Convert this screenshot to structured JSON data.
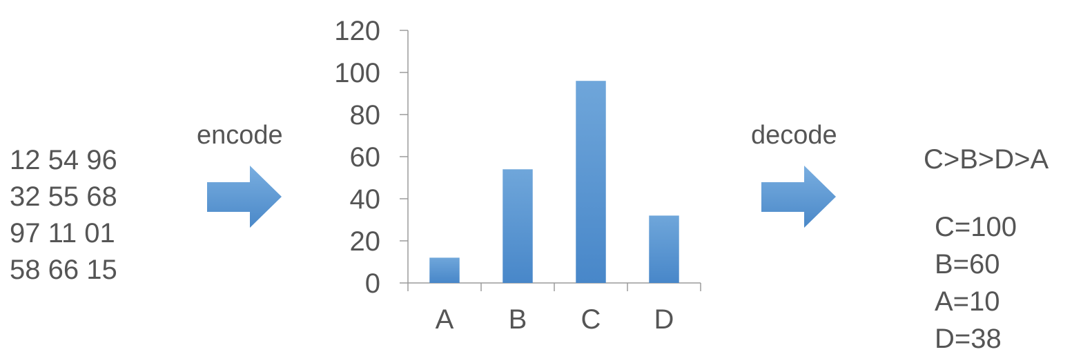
{
  "input_matrix": {
    "rows": [
      "12 54 96",
      "32 55 68",
      "97 11 01",
      "58 66 15"
    ]
  },
  "encode_label": "encode",
  "decode_label": "decode",
  "arrow_color": "#5b9bd5",
  "chart_data": {
    "type": "bar",
    "categories": [
      "A",
      "B",
      "C",
      "D"
    ],
    "values": [
      12,
      54,
      96,
      32
    ],
    "ylim": [
      0,
      120
    ],
    "yticks": [
      0,
      20,
      40,
      60,
      80,
      100,
      120
    ],
    "bar_color": "#5b9bd5",
    "grid": false,
    "title": "",
    "xlabel": "",
    "ylabel": ""
  },
  "result": {
    "order": "C>B>D>A",
    "values": [
      "C=100",
      "B=60",
      "A=10",
      "D=38"
    ]
  }
}
